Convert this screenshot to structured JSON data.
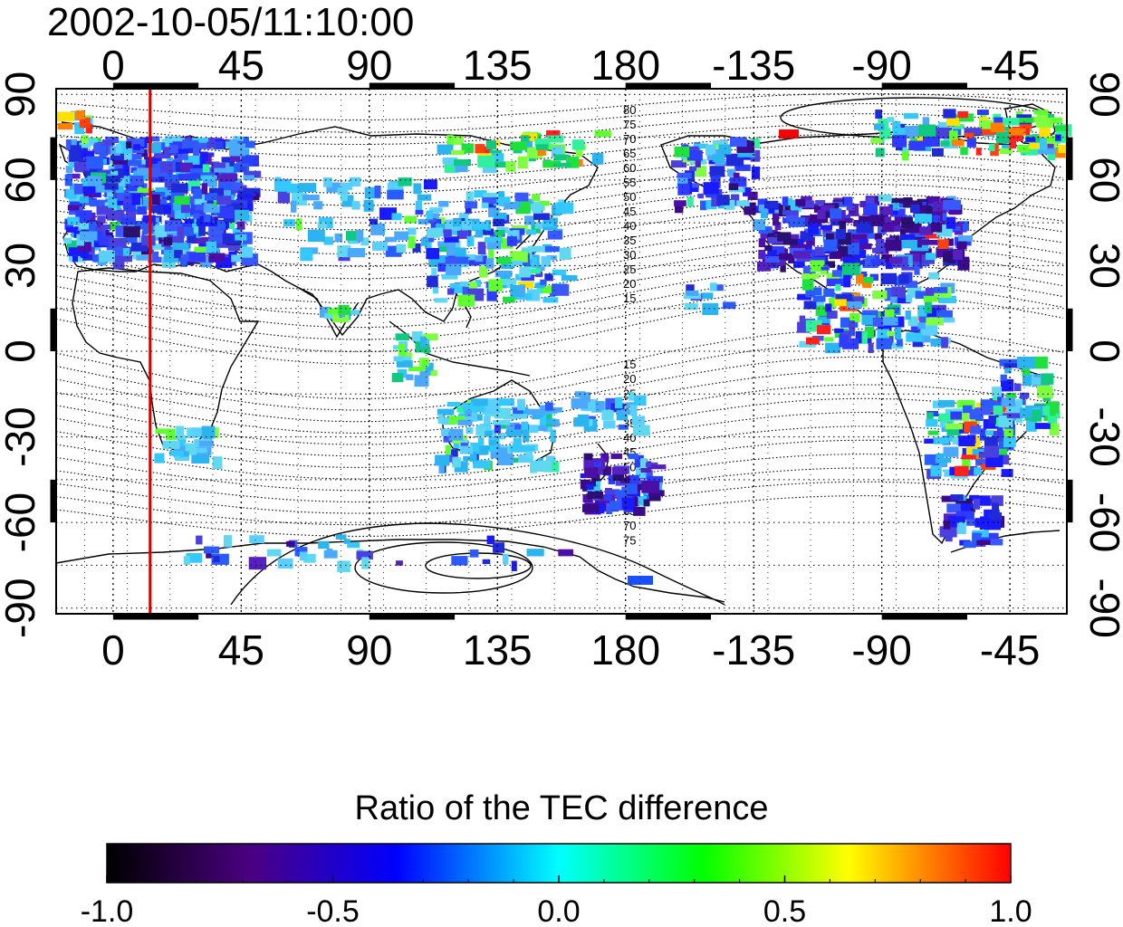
{
  "timestamp": "2002-10-05/11:10:00",
  "map": {
    "lon_ticks": [
      "0",
      "45",
      "90",
      "135",
      "180",
      "-135",
      "-90",
      "-45"
    ],
    "lon_values": [
      0,
      45,
      90,
      135,
      180,
      225,
      270,
      315
    ],
    "lat_ticks": [
      "90",
      "60",
      "30",
      "0",
      "-30",
      "-60",
      "-90"
    ],
    "lat_values": [
      90,
      60,
      30,
      0,
      -30,
      -60,
      -90
    ],
    "lon_range": [
      -20,
      335
    ],
    "lat_range": [
      -92,
      92
    ],
    "marker_longitude": 13,
    "marker_color": "#d40000",
    "grid": "dotted",
    "contour_labels_north": [
      "80",
      "75",
      "70",
      "65",
      "60",
      "55",
      "50",
      "45",
      "40",
      "35",
      "30",
      "25",
      "20",
      "15"
    ],
    "contour_labels_south": [
      "15",
      "20",
      "25",
      "30",
      "35",
      "40",
      "45",
      "50",
      "55",
      "60",
      "65",
      "70",
      "75"
    ]
  },
  "colorbar": {
    "title": "Ratio of the TEC difference",
    "tick_labels": [
      "-1.0",
      "-0.5",
      "0.0",
      "0.5",
      "1.0"
    ],
    "tick_values": [
      -1.0,
      -0.5,
      0.0,
      0.5,
      1.0
    ],
    "range": [
      -1.0,
      1.0
    ],
    "colors": [
      "#000000",
      "#4b0082",
      "#0000ff",
      "#00ffff",
      "#00ff00",
      "#ffff00",
      "#ff0000"
    ]
  }
}
